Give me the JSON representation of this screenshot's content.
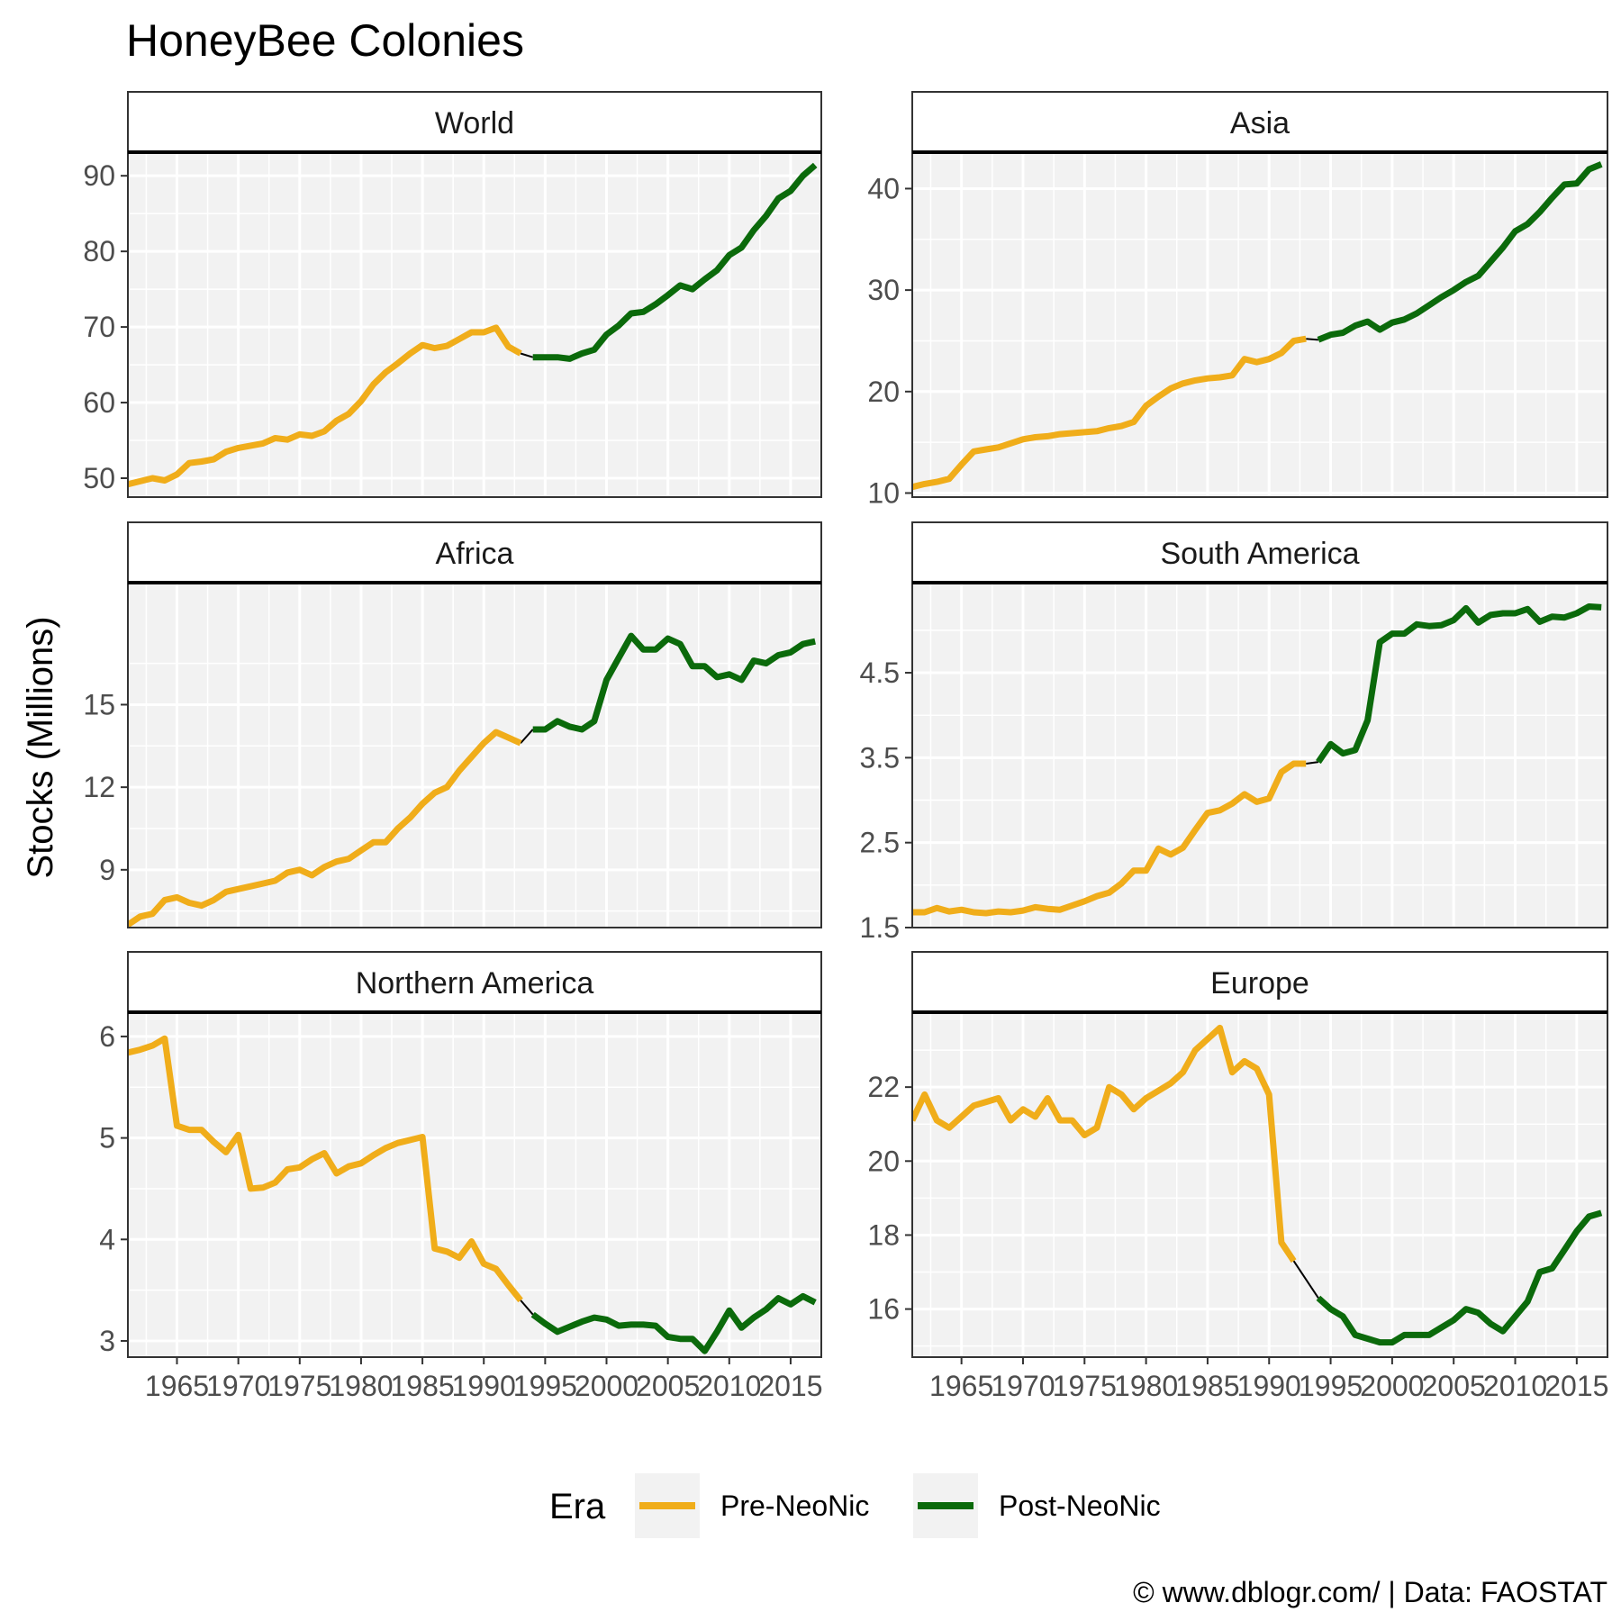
{
  "title": "HoneyBee Colonies",
  "ylabel": "Stocks (Millions)",
  "caption": "© www.dblogr.com/  |  Data: FAOSTAT",
  "legend": {
    "title": "Era",
    "items": [
      {
        "label": "Pre-NeoNic",
        "color": "#F0AD1A"
      },
      {
        "label": "Post-NeoNic",
        "color": "#0B6A0B"
      }
    ]
  },
  "colors": {
    "pre": "#F0AD1A",
    "post": "#0B6A0B",
    "connector": "#000000",
    "panel_bg": "#F2F2F2",
    "grid": "#FFFFFF"
  },
  "x_ticks": [
    1965,
    1970,
    1975,
    1980,
    1985,
    1990,
    1995,
    2000,
    2005,
    2010,
    2015
  ],
  "chart_data": [
    {
      "type": "line",
      "facet": "World",
      "xlim": [
        1961,
        2017.5
      ],
      "ylim": [
        47.5,
        93
      ],
      "y_ticks": [
        50,
        60,
        70,
        80,
        90
      ],
      "pre": {
        "x": [
          1961,
          1962,
          1963,
          1964,
          1965,
          1966,
          1967,
          1968,
          1969,
          1970,
          1971,
          1972,
          1973,
          1974,
          1975,
          1976,
          1977,
          1978,
          1979,
          1980,
          1981,
          1982,
          1983,
          1984,
          1985,
          1986,
          1987,
          1988,
          1989,
          1990,
          1991,
          1992,
          1993
        ],
        "y": [
          49.2,
          49.6,
          50.0,
          49.7,
          50.5,
          52.0,
          52.2,
          52.5,
          53.5,
          54.0,
          54.3,
          54.6,
          55.3,
          55.1,
          55.8,
          55.6,
          56.2,
          57.6,
          58.5,
          60.2,
          62.4,
          64.0,
          65.2,
          66.5,
          67.6,
          67.2,
          67.5,
          68.4,
          69.3,
          69.3,
          69.9,
          67.4,
          66.5
        ]
      },
      "post": {
        "x": [
          1994,
          1995,
          1996,
          1997,
          1998,
          1999,
          2000,
          2001,
          2002,
          2003,
          2004,
          2005,
          2006,
          2007,
          2008,
          2009,
          2010,
          2011,
          2012,
          2013,
          2014,
          2015,
          2016,
          2017
        ],
        "y": [
          66.0,
          66.0,
          66.0,
          65.8,
          66.5,
          67.0,
          69.0,
          70.2,
          71.8,
          72.0,
          73.0,
          74.2,
          75.5,
          75.0,
          76.3,
          77.5,
          79.5,
          80.5,
          82.8,
          84.7,
          87.0,
          88.0,
          90.0,
          91.4
        ]
      }
    },
    {
      "type": "line",
      "facet": "Asia",
      "xlim": [
        1961,
        2017.5
      ],
      "ylim": [
        9.6,
        43.5
      ],
      "y_ticks": [
        10,
        20,
        30,
        40
      ],
      "pre": {
        "x": [
          1961,
          1962,
          1963,
          1964,
          1965,
          1966,
          1967,
          1968,
          1969,
          1970,
          1971,
          1972,
          1973,
          1974,
          1975,
          1976,
          1977,
          1978,
          1979,
          1980,
          1981,
          1982,
          1983,
          1984,
          1985,
          1986,
          1987,
          1988,
          1989,
          1990,
          1991,
          1992,
          1993
        ],
        "y": [
          10.6,
          10.9,
          11.1,
          11.4,
          12.8,
          14.1,
          14.3,
          14.5,
          14.9,
          15.3,
          15.5,
          15.6,
          15.8,
          15.9,
          16.0,
          16.1,
          16.4,
          16.6,
          17.0,
          18.6,
          19.5,
          20.3,
          20.8,
          21.1,
          21.3,
          21.4,
          21.6,
          23.2,
          22.9,
          23.2,
          23.8,
          25.0,
          25.2
        ]
      },
      "post": {
        "x": [
          1994,
          1995,
          1996,
          1997,
          1998,
          1999,
          2000,
          2001,
          2002,
          2003,
          2004,
          2005,
          2006,
          2007,
          2008,
          2009,
          2010,
          2011,
          2012,
          2013,
          2014,
          2015,
          2016,
          2017
        ],
        "y": [
          25.1,
          25.6,
          25.8,
          26.5,
          26.9,
          26.1,
          26.8,
          27.1,
          27.7,
          28.5,
          29.3,
          30.0,
          30.8,
          31.4,
          32.8,
          34.2,
          35.8,
          36.5,
          37.7,
          39.1,
          40.4,
          40.5,
          41.9,
          42.4
        ]
      }
    },
    {
      "type": "line",
      "facet": "Africa",
      "xlim": [
        1961,
        2017.5
      ],
      "ylim": [
        6.9,
        19.4
      ],
      "y_ticks": [
        9,
        12,
        15
      ],
      "pre": {
        "x": [
          1961,
          1962,
          1963,
          1964,
          1965,
          1966,
          1967,
          1968,
          1969,
          1970,
          1971,
          1972,
          1973,
          1974,
          1975,
          1976,
          1977,
          1978,
          1979,
          1980,
          1981,
          1982,
          1983,
          1984,
          1985,
          1986,
          1987,
          1988,
          1989,
          1990,
          1991,
          1992,
          1993
        ],
        "y": [
          7.0,
          7.3,
          7.4,
          7.9,
          8.0,
          7.8,
          7.7,
          7.9,
          8.2,
          8.3,
          8.4,
          8.5,
          8.6,
          8.9,
          9.0,
          8.8,
          9.1,
          9.3,
          9.4,
          9.7,
          10.0,
          10.0,
          10.5,
          10.9,
          11.4,
          11.8,
          12.0,
          12.6,
          13.1,
          13.6,
          14.0,
          13.8,
          13.6
        ]
      },
      "post": {
        "x": [
          1994,
          1995,
          1996,
          1997,
          1998,
          1999,
          2000,
          2001,
          2002,
          2003,
          2004,
          2005,
          2006,
          2007,
          2008,
          2009,
          2010,
          2011,
          2012,
          2013,
          2014,
          2015,
          2016,
          2017
        ],
        "y": [
          14.1,
          14.1,
          14.4,
          14.2,
          14.1,
          14.4,
          15.9,
          16.7,
          17.5,
          17.0,
          17.0,
          17.4,
          17.2,
          16.4,
          16.4,
          16.0,
          16.1,
          15.9,
          16.6,
          16.5,
          16.8,
          16.9,
          17.2,
          17.3
        ]
      }
    },
    {
      "type": "line",
      "facet": "South America",
      "xlim": [
        1961,
        2017.5
      ],
      "ylim": [
        1.5,
        5.55
      ],
      "y_ticks": [
        1.5,
        2.5,
        3.5,
        4.5
      ],
      "pre": {
        "x": [
          1961,
          1962,
          1963,
          1964,
          1965,
          1966,
          1967,
          1968,
          1969,
          1970,
          1971,
          1972,
          1973,
          1974,
          1975,
          1976,
          1977,
          1978,
          1979,
          1980,
          1981,
          1982,
          1983,
          1984,
          1985,
          1986,
          1987,
          1988,
          1989,
          1990,
          1991,
          1992,
          1993
        ],
        "y": [
          1.68,
          1.68,
          1.73,
          1.69,
          1.71,
          1.68,
          1.67,
          1.69,
          1.68,
          1.7,
          1.74,
          1.72,
          1.71,
          1.76,
          1.81,
          1.87,
          1.91,
          2.02,
          2.17,
          2.17,
          2.43,
          2.36,
          2.44,
          2.65,
          2.85,
          2.88,
          2.96,
          3.07,
          2.98,
          3.02,
          3.33,
          3.43,
          3.43
        ]
      },
      "post": {
        "x": [
          1994,
          1995,
          1996,
          1997,
          1998,
          1999,
          2000,
          2001,
          2002,
          2003,
          2004,
          2005,
          2006,
          2007,
          2008,
          2009,
          2010,
          2011,
          2012,
          2013,
          2014,
          2015,
          2016,
          2017
        ],
        "y": [
          3.45,
          3.66,
          3.55,
          3.59,
          3.94,
          4.86,
          4.96,
          4.96,
          5.07,
          5.05,
          5.06,
          5.12,
          5.26,
          5.09,
          5.18,
          5.2,
          5.2,
          5.25,
          5.1,
          5.16,
          5.15,
          5.2,
          5.28,
          5.27
        ]
      }
    },
    {
      "type": "line",
      "facet": "Northern America",
      "xlim": [
        1961,
        2017.5
      ],
      "ylim": [
        2.84,
        6.23
      ],
      "y_ticks": [
        3,
        4,
        5,
        6
      ],
      "pre": {
        "x": [
          1961,
          1962,
          1963,
          1964,
          1965,
          1966,
          1967,
          1968,
          1969,
          1970,
          1971,
          1972,
          1973,
          1974,
          1975,
          1976,
          1977,
          1978,
          1979,
          1980,
          1981,
          1982,
          1983,
          1984,
          1985,
          1986,
          1987,
          1988,
          1989,
          1990,
          1991,
          1992,
          1993
        ],
        "y": [
          5.84,
          5.87,
          5.91,
          5.98,
          5.12,
          5.08,
          5.08,
          4.96,
          4.86,
          5.03,
          4.5,
          4.51,
          4.56,
          4.69,
          4.71,
          4.79,
          4.85,
          4.65,
          4.72,
          4.75,
          4.83,
          4.9,
          4.95,
          4.98,
          5.01,
          3.91,
          3.88,
          3.82,
          3.98,
          3.76,
          3.71,
          3.55,
          3.4
        ]
      },
      "post": {
        "x": [
          1994,
          1995,
          1996,
          1997,
          1998,
          1999,
          2000,
          2001,
          2002,
          2003,
          2004,
          2005,
          2006,
          2007,
          2008,
          2009,
          2010,
          2011,
          2012,
          2013,
          2014,
          2015,
          2016,
          2017
        ],
        "y": [
          3.26,
          3.17,
          3.09,
          3.14,
          3.19,
          3.23,
          3.21,
          3.15,
          3.16,
          3.16,
          3.15,
          3.04,
          3.02,
          3.02,
          2.9,
          3.09,
          3.3,
          3.13,
          3.23,
          3.31,
          3.42,
          3.36,
          3.44,
          3.38
        ]
      }
    },
    {
      "type": "line",
      "facet": "Europe",
      "xlim": [
        1961,
        2017.5
      ],
      "ylim": [
        14.7,
        24.0
      ],
      "y_ticks": [
        16,
        18,
        20,
        22
      ],
      "pre": {
        "x": [
          1961,
          1962,
          1963,
          1964,
          1965,
          1966,
          1967,
          1968,
          1969,
          1970,
          1971,
          1972,
          1973,
          1974,
          1975,
          1976,
          1977,
          1978,
          1979,
          1980,
          1981,
          1982,
          1983,
          1984,
          1985,
          1986,
          1987,
          1988,
          1989,
          1990,
          1991,
          1992,
          1993
        ],
        "y": [
          21.1,
          21.8,
          21.1,
          20.9,
          21.2,
          21.5,
          21.6,
          21.7,
          21.1,
          21.4,
          21.2,
          21.7,
          21.1,
          21.1,
          20.7,
          20.9,
          22.0,
          21.8,
          21.4,
          21.7,
          21.9,
          22.1,
          22.4,
          23.0,
          23.3,
          23.6,
          22.4,
          22.7,
          22.5,
          21.8,
          17.8,
          17.3,
          null
        ]
      },
      "post": {
        "x": [
          1994,
          1995,
          1996,
          1997,
          1998,
          1999,
          2000,
          2001,
          2002,
          2003,
          2004,
          2005,
          2006,
          2007,
          2008,
          2009,
          2010,
          2011,
          2012,
          2013,
          2014,
          2015,
          2016,
          2017
        ],
        "y": [
          16.3,
          16.0,
          15.8,
          15.3,
          15.2,
          15.1,
          15.1,
          15.3,
          15.3,
          15.3,
          15.5,
          15.7,
          16.0,
          15.9,
          15.6,
          15.4,
          15.8,
          16.2,
          17.0,
          17.1,
          17.6,
          18.1,
          18.5,
          18.6
        ]
      }
    }
  ]
}
